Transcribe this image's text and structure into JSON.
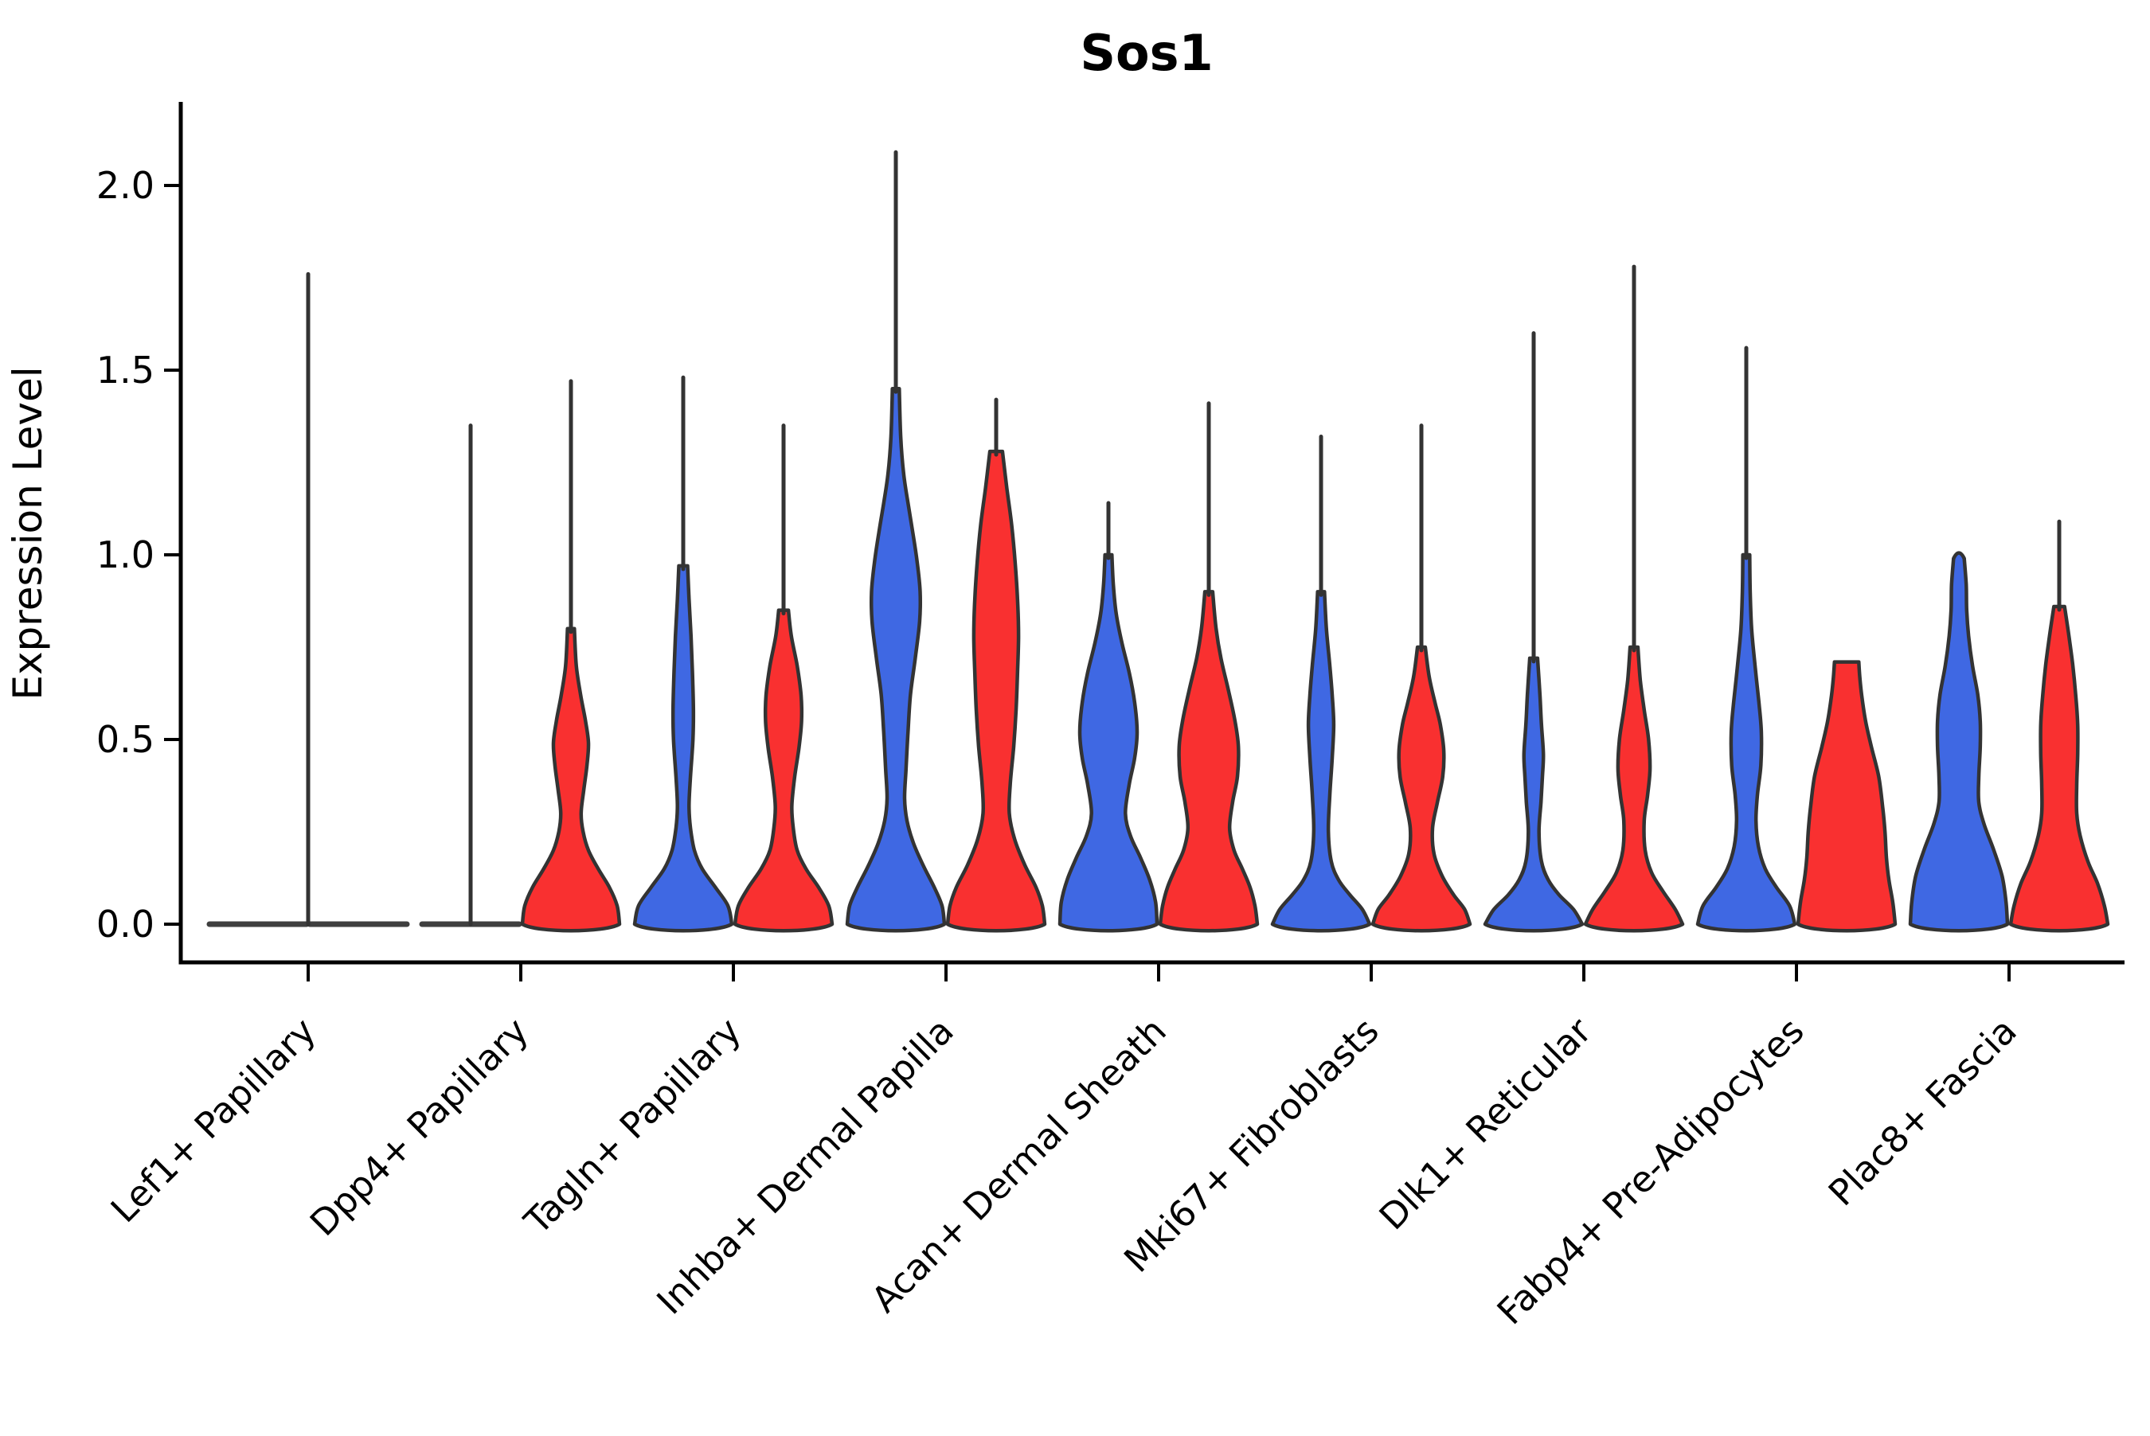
{
  "title": "Sos1",
  "colors": {
    "blue_fill": "#3F68E3",
    "red_fill": "#F93030",
    "violin_outline": "#333333",
    "flat_line": "#3F3F3F",
    "axis": "#000000"
  },
  "chart_data": {
    "type": "violin",
    "title": "Sos1",
    "xlabel": "",
    "ylabel": "Expression Level",
    "ylim": [
      -0.11,
      2.22
    ],
    "grid": false,
    "legend": "none",
    "splits": [
      "blue",
      "red"
    ],
    "y_ticks": [
      {
        "label": "2.0",
        "value": 2.0
      },
      {
        "label": "1.5",
        "value": 1.5
      },
      {
        "label": "1.0",
        "value": 1.0
      },
      {
        "label": "0.5",
        "value": 0.5
      },
      {
        "label": "0.0",
        "value": 0.0
      }
    ],
    "categories": [
      "Lef1+ Papillary",
      "Dpp4+ Papillary",
      "Tagln+ Papillary",
      "Inhba+ Dermal Papilla",
      "Acan+ Dermal Sheath",
      "Mki67+ Fibroblasts",
      "Dlk1+ Reticular",
      "Fabp4+ Pre-Adipocytes",
      "Plac8+ Fascia"
    ],
    "groups": [
      {
        "category": "Lef1+ Papillary",
        "center_spike_max": 1.76,
        "blue": {
          "shape": "flat",
          "spike_max": null,
          "top": "flat",
          "profile": null
        },
        "red": {
          "shape": "flat",
          "spike_max": null,
          "top": "flat",
          "profile": null
        }
      },
      {
        "category": "Dpp4+ Papillary",
        "center_spike_max": null,
        "blue": {
          "shape": "flat",
          "spike_max": 1.35,
          "top": "spike",
          "profile": null
        },
        "red": {
          "shape": "density",
          "spike_max": 1.47,
          "top": "spike",
          "profile": [
            [
              0,
              1.0
            ],
            [
              0.05,
              0.95
            ],
            [
              0.1,
              0.79
            ],
            [
              0.15,
              0.56
            ],
            [
              0.2,
              0.36
            ],
            [
              0.25,
              0.25
            ],
            [
              0.3,
              0.21
            ],
            [
              0.36,
              0.26
            ],
            [
              0.43,
              0.33
            ],
            [
              0.49,
              0.36
            ],
            [
              0.55,
              0.3
            ],
            [
              0.62,
              0.2
            ],
            [
              0.7,
              0.11
            ],
            [
              0.8,
              0.07
            ]
          ]
        }
      },
      {
        "category": "Tagln+ Papillary",
        "center_spike_max": null,
        "blue": {
          "shape": "density",
          "spike_max": 1.48,
          "top": "spike",
          "profile": [
            [
              0,
              1.0
            ],
            [
              0.05,
              0.92
            ],
            [
              0.1,
              0.66
            ],
            [
              0.15,
              0.39
            ],
            [
              0.2,
              0.23
            ],
            [
              0.26,
              0.15
            ],
            [
              0.32,
              0.12
            ],
            [
              0.4,
              0.15
            ],
            [
              0.5,
              0.2
            ],
            [
              0.58,
              0.21
            ],
            [
              0.68,
              0.19
            ],
            [
              0.78,
              0.16
            ],
            [
              0.88,
              0.12
            ],
            [
              0.97,
              0.09
            ]
          ]
        },
        "red": {
          "shape": "density",
          "spike_max": 1.35,
          "top": "spike",
          "profile": [
            [
              0,
              1.0
            ],
            [
              0.05,
              0.93
            ],
            [
              0.1,
              0.72
            ],
            [
              0.15,
              0.46
            ],
            [
              0.2,
              0.28
            ],
            [
              0.26,
              0.2
            ],
            [
              0.32,
              0.17
            ],
            [
              0.4,
              0.23
            ],
            [
              0.48,
              0.32
            ],
            [
              0.55,
              0.37
            ],
            [
              0.62,
              0.36
            ],
            [
              0.7,
              0.28
            ],
            [
              0.78,
              0.16
            ],
            [
              0.85,
              0.1
            ]
          ]
        }
      },
      {
        "category": "Inhba+ Dermal Papilla",
        "center_spike_max": null,
        "blue": {
          "shape": "density",
          "spike_max": 2.09,
          "top": "spike",
          "profile": [
            [
              0,
              1.0
            ],
            [
              0.05,
              0.95
            ],
            [
              0.1,
              0.79
            ],
            [
              0.16,
              0.56
            ],
            [
              0.22,
              0.36
            ],
            [
              0.28,
              0.23
            ],
            [
              0.34,
              0.18
            ],
            [
              0.42,
              0.21
            ],
            [
              0.52,
              0.25
            ],
            [
              0.62,
              0.3
            ],
            [
              0.72,
              0.4
            ],
            [
              0.82,
              0.49
            ],
            [
              0.9,
              0.5
            ],
            [
              0.98,
              0.44
            ],
            [
              1.06,
              0.35
            ],
            [
              1.14,
              0.25
            ],
            [
              1.22,
              0.16
            ],
            [
              1.32,
              0.1
            ],
            [
              1.45,
              0.07
            ]
          ]
        },
        "red": {
          "shape": "density",
          "spike_max": 1.42,
          "top": "spike",
          "profile": [
            [
              0,
              1.0
            ],
            [
              0.05,
              0.95
            ],
            [
              0.1,
              0.82
            ],
            [
              0.16,
              0.59
            ],
            [
              0.23,
              0.38
            ],
            [
              0.3,
              0.27
            ],
            [
              0.38,
              0.29
            ],
            [
              0.48,
              0.36
            ],
            [
              0.58,
              0.41
            ],
            [
              0.68,
              0.44
            ],
            [
              0.78,
              0.46
            ],
            [
              0.88,
              0.44
            ],
            [
              0.98,
              0.39
            ],
            [
              1.08,
              0.32
            ],
            [
              1.18,
              0.22
            ],
            [
              1.28,
              0.13
            ]
          ]
        }
      },
      {
        "category": "Acan+ Dermal Sheath",
        "center_spike_max": null,
        "blue": {
          "shape": "density",
          "spike_max": 1.14,
          "top": "spike",
          "profile": [
            [
              0,
              1.0
            ],
            [
              0.06,
              0.97
            ],
            [
              0.12,
              0.85
            ],
            [
              0.18,
              0.66
            ],
            [
              0.24,
              0.45
            ],
            [
              0.3,
              0.35
            ],
            [
              0.38,
              0.43
            ],
            [
              0.45,
              0.54
            ],
            [
              0.52,
              0.59
            ],
            [
              0.6,
              0.54
            ],
            [
              0.68,
              0.43
            ],
            [
              0.76,
              0.28
            ],
            [
              0.84,
              0.16
            ],
            [
              0.92,
              0.1
            ],
            [
              1.0,
              0.07
            ]
          ]
        },
        "red": {
          "shape": "density",
          "spike_max": 1.41,
          "top": "spike",
          "profile": [
            [
              0,
              1.0
            ],
            [
              0.05,
              0.95
            ],
            [
              0.1,
              0.85
            ],
            [
              0.15,
              0.69
            ],
            [
              0.2,
              0.52
            ],
            [
              0.26,
              0.43
            ],
            [
              0.33,
              0.49
            ],
            [
              0.4,
              0.59
            ],
            [
              0.48,
              0.61
            ],
            [
              0.55,
              0.54
            ],
            [
              0.63,
              0.41
            ],
            [
              0.72,
              0.25
            ],
            [
              0.8,
              0.15
            ],
            [
              0.9,
              0.08
            ]
          ]
        }
      },
      {
        "category": "Mki67+ Fibroblasts",
        "center_spike_max": null,
        "blue": {
          "shape": "density",
          "spike_max": 1.32,
          "top": "spike",
          "profile": [
            [
              0,
              1.0
            ],
            [
              0.04,
              0.85
            ],
            [
              0.08,
              0.59
            ],
            [
              0.12,
              0.36
            ],
            [
              0.17,
              0.21
            ],
            [
              0.25,
              0.15
            ],
            [
              0.35,
              0.18
            ],
            [
              0.45,
              0.23
            ],
            [
              0.54,
              0.26
            ],
            [
              0.62,
              0.23
            ],
            [
              0.7,
              0.18
            ],
            [
              0.8,
              0.11
            ],
            [
              0.9,
              0.07
            ]
          ]
        },
        "red": {
          "shape": "density",
          "spike_max": 1.35,
          "top": "spike",
          "profile": [
            [
              0,
              1.0
            ],
            [
              0.04,
              0.89
            ],
            [
              0.08,
              0.66
            ],
            [
              0.13,
              0.43
            ],
            [
              0.19,
              0.26
            ],
            [
              0.26,
              0.23
            ],
            [
              0.33,
              0.33
            ],
            [
              0.4,
              0.44
            ],
            [
              0.47,
              0.46
            ],
            [
              0.54,
              0.39
            ],
            [
              0.6,
              0.28
            ],
            [
              0.67,
              0.16
            ],
            [
              0.75,
              0.08
            ]
          ]
        }
      },
      {
        "category": "Dlk1+ Reticular",
        "center_spike_max": null,
        "blue": {
          "shape": "density",
          "spike_max": 1.6,
          "top": "spike",
          "profile": [
            [
              0,
              1.0
            ],
            [
              0.04,
              0.82
            ],
            [
              0.08,
              0.52
            ],
            [
              0.12,
              0.3
            ],
            [
              0.17,
              0.16
            ],
            [
              0.25,
              0.11
            ],
            [
              0.33,
              0.15
            ],
            [
              0.4,
              0.18
            ],
            [
              0.46,
              0.2
            ],
            [
              0.54,
              0.16
            ],
            [
              0.62,
              0.13
            ],
            [
              0.72,
              0.08
            ]
          ]
        },
        "red": {
          "shape": "density",
          "spike_max": 1.78,
          "top": "spike",
          "profile": [
            [
              0,
              1.0
            ],
            [
              0.04,
              0.85
            ],
            [
              0.09,
              0.59
            ],
            [
              0.14,
              0.36
            ],
            [
              0.2,
              0.23
            ],
            [
              0.28,
              0.21
            ],
            [
              0.35,
              0.28
            ],
            [
              0.42,
              0.33
            ],
            [
              0.5,
              0.3
            ],
            [
              0.58,
              0.21
            ],
            [
              0.66,
              0.13
            ],
            [
              0.75,
              0.08
            ]
          ]
        }
      },
      {
        "category": "Fabp4+ Pre-Adipocytes",
        "center_spike_max": null,
        "blue": {
          "shape": "density",
          "spike_max": 1.56,
          "top": "spike",
          "profile": [
            [
              0,
              1.0
            ],
            [
              0.05,
              0.89
            ],
            [
              0.1,
              0.62
            ],
            [
              0.15,
              0.39
            ],
            [
              0.21,
              0.25
            ],
            [
              0.28,
              0.2
            ],
            [
              0.35,
              0.23
            ],
            [
              0.43,
              0.3
            ],
            [
              0.52,
              0.31
            ],
            [
              0.6,
              0.26
            ],
            [
              0.7,
              0.18
            ],
            [
              0.8,
              0.11
            ],
            [
              0.9,
              0.08
            ],
            [
              1.0,
              0.07
            ]
          ]
        },
        "red": {
          "shape": "density",
          "spike_max": null,
          "top": "flat",
          "profile": [
            [
              0,
              1.0
            ],
            [
              0.06,
              0.95
            ],
            [
              0.12,
              0.87
            ],
            [
              0.18,
              0.82
            ],
            [
              0.25,
              0.79
            ],
            [
              0.32,
              0.74
            ],
            [
              0.4,
              0.66
            ],
            [
              0.48,
              0.51
            ],
            [
              0.55,
              0.39
            ],
            [
              0.62,
              0.31
            ],
            [
              0.67,
              0.27
            ],
            [
              0.71,
              0.25
            ]
          ]
        }
      },
      {
        "category": "Plac8+ Fascia",
        "center_spike_max": null,
        "blue": {
          "shape": "density",
          "spike_max": null,
          "top": "round",
          "profile": [
            [
              0,
              1.0
            ],
            [
              0.06,
              0.97
            ],
            [
              0.13,
              0.89
            ],
            [
              0.2,
              0.72
            ],
            [
              0.27,
              0.52
            ],
            [
              0.33,
              0.41
            ],
            [
              0.4,
              0.41
            ],
            [
              0.48,
              0.44
            ],
            [
              0.55,
              0.44
            ],
            [
              0.62,
              0.39
            ],
            [
              0.7,
              0.28
            ],
            [
              0.78,
              0.2
            ],
            [
              0.85,
              0.16
            ],
            [
              0.92,
              0.15
            ],
            [
              0.99,
              0.11
            ]
          ]
        },
        "red": {
          "shape": "density",
          "spike_max": 1.09,
          "top": "spike",
          "profile": [
            [
              0,
              1.0
            ],
            [
              0.05,
              0.93
            ],
            [
              0.11,
              0.79
            ],
            [
              0.17,
              0.59
            ],
            [
              0.24,
              0.43
            ],
            [
              0.3,
              0.36
            ],
            [
              0.38,
              0.36
            ],
            [
              0.46,
              0.38
            ],
            [
              0.54,
              0.38
            ],
            [
              0.62,
              0.34
            ],
            [
              0.7,
              0.28
            ],
            [
              0.78,
              0.2
            ],
            [
              0.86,
              0.11
            ]
          ]
        }
      }
    ]
  }
}
